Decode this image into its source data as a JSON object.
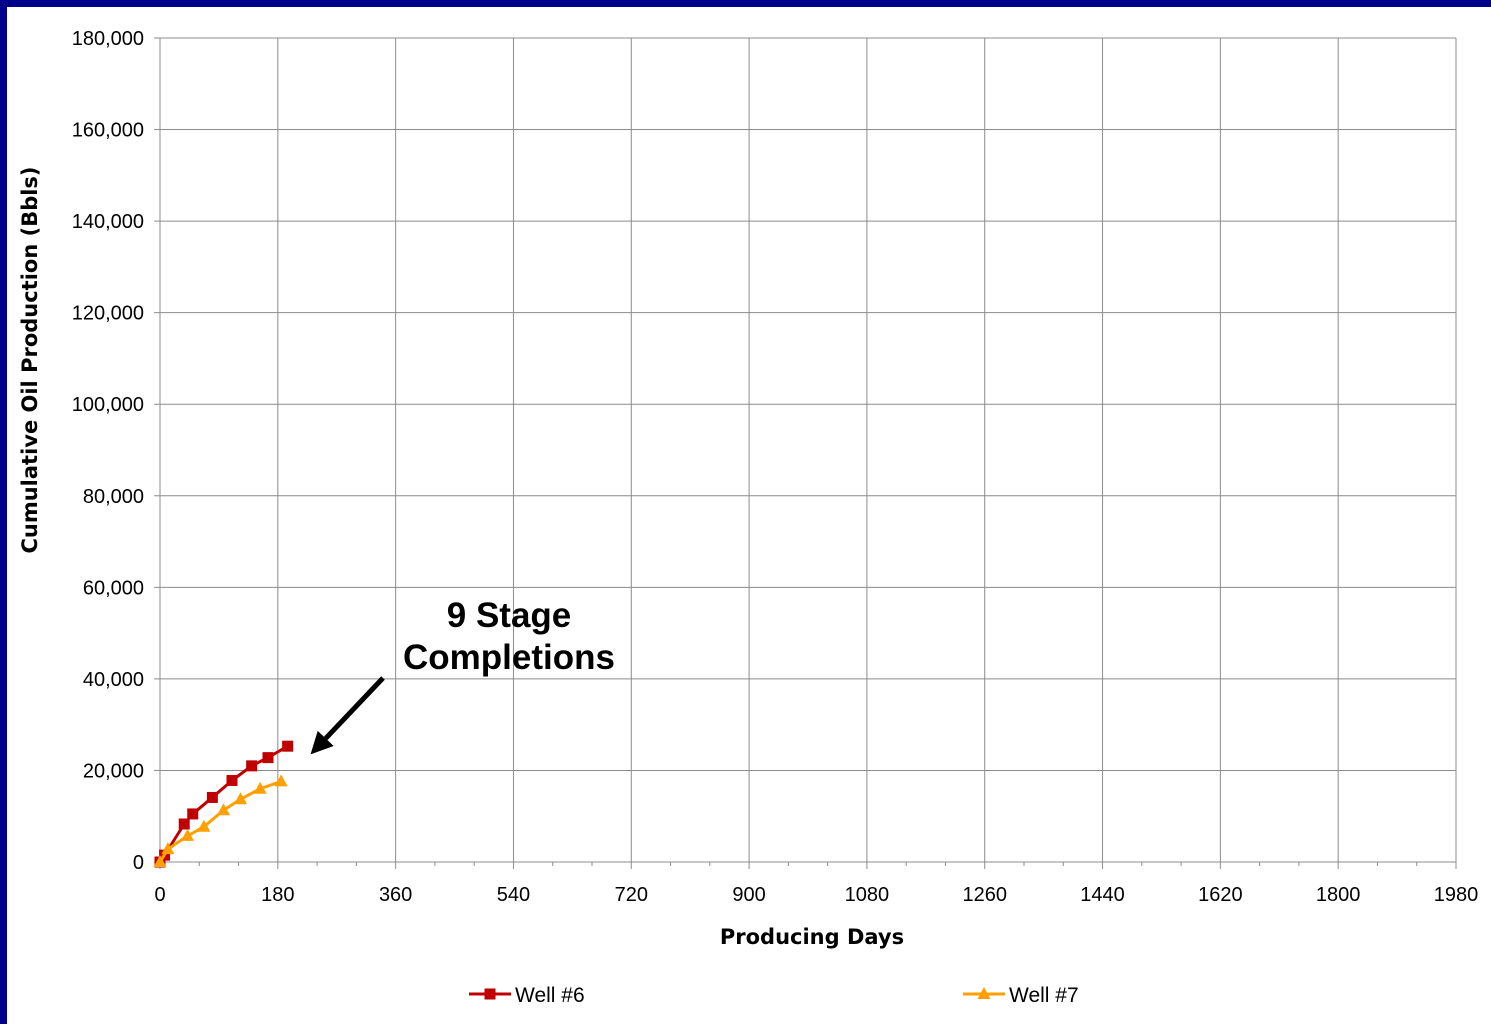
{
  "chart_data": {
    "type": "line",
    "xlabel": "Producing Days",
    "ylabel": "Cumulative Oil Production (Bbls)",
    "xlim": [
      0,
      1980
    ],
    "ylim": [
      0,
      180000
    ],
    "x_ticks": [
      "0",
      "180",
      "360",
      "540",
      "720",
      "900",
      "1080",
      "1260",
      "1440",
      "1620",
      "1800",
      "1980"
    ],
    "y_ticks": [
      "0",
      "20,000",
      "40,000",
      "60,000",
      "80,000",
      "100,000",
      "120,000",
      "140,000",
      "160,000",
      "180,000"
    ],
    "grid": true,
    "legend_position": "bottom",
    "annotation": {
      "lines": [
        "9 Stage",
        "Completions"
      ],
      "arrow_to": {
        "x": 230,
        "y": 23500
      }
    },
    "series": [
      {
        "name": "Well #6",
        "color": "#C00000",
        "marker": "square",
        "x": [
          0,
          7,
          37,
          50,
          80,
          110,
          140,
          165,
          195
        ],
        "y": [
          0,
          1500,
          8300,
          10500,
          14100,
          17800,
          21000,
          22800,
          25300
        ]
      },
      {
        "name": "Well #7",
        "color": "#FFA000",
        "marker": "triangle",
        "x": [
          0,
          12,
          42,
          67,
          97,
          123,
          153,
          185
        ],
        "y": [
          0,
          2800,
          5700,
          7700,
          11300,
          13700,
          16000,
          17600
        ]
      }
    ]
  }
}
